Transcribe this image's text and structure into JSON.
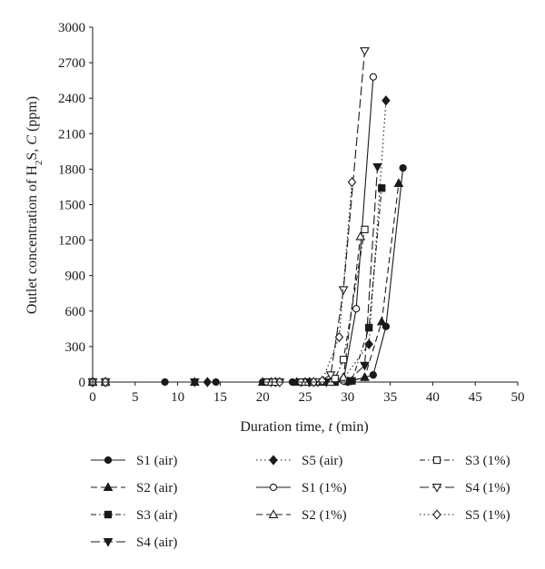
{
  "chart_data": {
    "type": "line",
    "y_axis": {
      "label_prefix": "Outlet concentration of H",
      "label_sub": "2",
      "label_mid": "S, ",
      "label_var": "C",
      "label_unit": " (ppm)",
      "ylim": [
        0,
        3000
      ],
      "ticks": [
        0,
        300,
        600,
        900,
        1200,
        1500,
        1800,
        2100,
        2400,
        2700,
        3000
      ]
    },
    "x_axis": {
      "label_text": "Duration time, ",
      "label_var": "t",
      "label_unit": " (min)",
      "xlim": [
        0,
        50
      ],
      "ticks": [
        0,
        5,
        10,
        15,
        20,
        25,
        30,
        35,
        40,
        45,
        50
      ]
    },
    "grid": false,
    "legend_position": "bottom",
    "series": [
      {
        "name": "S1 (air)",
        "marker": "circle-filled",
        "dash": "solid",
        "points": [
          [
            0,
            0
          ],
          [
            1.5,
            0
          ],
          [
            8.5,
            0
          ],
          [
            14.5,
            0
          ],
          [
            20,
            0
          ],
          [
            23.5,
            0
          ],
          [
            27.5,
            0
          ],
          [
            30,
            0
          ],
          [
            33,
            60
          ],
          [
            34.5,
            470
          ],
          [
            36.5,
            1810
          ]
        ]
      },
      {
        "name": "S2 (air)",
        "marker": "triangle-up-filled",
        "dash": "dash",
        "points": [
          [
            0,
            0
          ],
          [
            1.5,
            0
          ],
          [
            12,
            0
          ],
          [
            20,
            0
          ],
          [
            24,
            0
          ],
          [
            27,
            0
          ],
          [
            30,
            5
          ],
          [
            32,
            40
          ],
          [
            34,
            510
          ],
          [
            36,
            1680
          ]
        ]
      },
      {
        "name": "S3 (air)",
        "marker": "square-filled",
        "dash": "dashdot",
        "points": [
          [
            0,
            0
          ],
          [
            1.5,
            0
          ],
          [
            20.5,
            0
          ],
          [
            25,
            0
          ],
          [
            28.5,
            0
          ],
          [
            30.5,
            10
          ],
          [
            32.5,
            460
          ],
          [
            34,
            1640
          ]
        ]
      },
      {
        "name": "S4 (air)",
        "marker": "triangle-down-filled",
        "dash": "longdash",
        "points": [
          [
            0,
            0
          ],
          [
            1.5,
            0
          ],
          [
            12,
            0
          ],
          [
            21,
            0
          ],
          [
            24.5,
            0
          ],
          [
            27.5,
            0
          ],
          [
            30,
            10
          ],
          [
            32,
            140
          ],
          [
            33.5,
            1820
          ]
        ]
      },
      {
        "name": "S5 (air)",
        "marker": "diamond-filled",
        "dash": "dot",
        "points": [
          [
            0,
            0
          ],
          [
            1.5,
            0
          ],
          [
            13.5,
            0
          ],
          [
            21.5,
            0
          ],
          [
            25.5,
            0
          ],
          [
            29.5,
            30
          ],
          [
            32.5,
            320
          ],
          [
            34.5,
            2380
          ]
        ]
      },
      {
        "name": "S1 (1%)",
        "marker": "circle-open",
        "dash": "solid",
        "points": [
          [
            0,
            0
          ],
          [
            1.5,
            0
          ],
          [
            20.5,
            0
          ],
          [
            24.5,
            0
          ],
          [
            27,
            0
          ],
          [
            29.5,
            10
          ],
          [
            31,
            620
          ],
          [
            33,
            2580
          ]
        ]
      },
      {
        "name": "S2 (1%)",
        "marker": "triangle-up-open",
        "dash": "dash",
        "points": [
          [
            0,
            0
          ],
          [
            1.5,
            0
          ],
          [
            21,
            0
          ],
          [
            25,
            0
          ],
          [
            28,
            0
          ],
          [
            29.5,
            40
          ],
          [
            31.5,
            1230
          ]
        ]
      },
      {
        "name": "S3 (1%)",
        "marker": "square-open",
        "dash": "dashdot",
        "points": [
          [
            0,
            0
          ],
          [
            1.5,
            0
          ],
          [
            21.5,
            0
          ],
          [
            26,
            0
          ],
          [
            28.5,
            30
          ],
          [
            29.5,
            190
          ],
          [
            32,
            1290
          ]
        ]
      },
      {
        "name": "S4 (1%)",
        "marker": "triangle-down-open",
        "dash": "longdash",
        "points": [
          [
            0,
            0
          ],
          [
            1.5,
            0
          ],
          [
            22,
            0
          ],
          [
            26.5,
            0
          ],
          [
            28,
            60
          ],
          [
            29.5,
            780
          ],
          [
            32,
            2800
          ]
        ]
      },
      {
        "name": "S5 (1%)",
        "marker": "diamond-open",
        "dash": "dot",
        "points": [
          [
            0,
            0
          ],
          [
            1.5,
            0
          ],
          [
            22,
            0
          ],
          [
            26,
            0
          ],
          [
            27,
            10
          ],
          [
            29,
            380
          ],
          [
            30.5,
            1690
          ]
        ]
      }
    ],
    "legend_layout": [
      [
        "S1 (air)",
        "S5 (air)",
        "S3 (1%)"
      ],
      [
        "S2 (air)",
        "S1 (1%)",
        "S4 (1%)"
      ],
      [
        "S3 (air)",
        "S2 (1%)",
        "S5 (1%)"
      ],
      [
        "S4 (air)"
      ]
    ],
    "colors": {
      "ink": "#1a1a1a",
      "background": "#ffffff"
    }
  }
}
